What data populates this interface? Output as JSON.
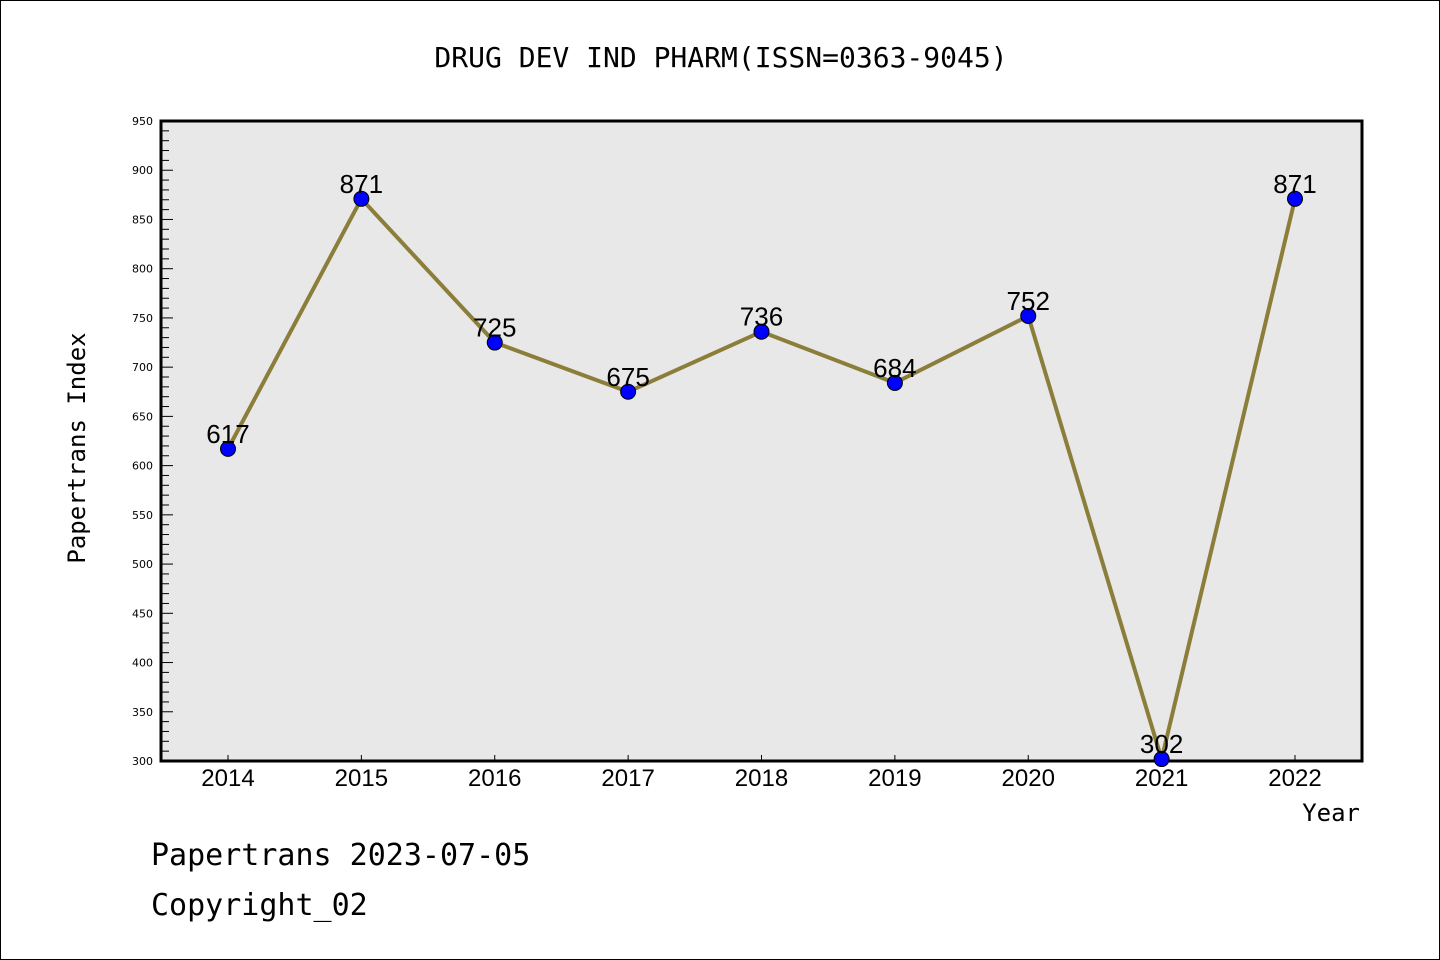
{
  "chart_data": {
    "type": "line",
    "title": "DRUG DEV IND PHARM(ISSN=0363-9045)",
    "xlabel": "Year",
    "ylabel": "Papertrans Index",
    "categories": [
      "2014",
      "2015",
      "2016",
      "2017",
      "2018",
      "2019",
      "2020",
      "2021",
      "2022"
    ],
    "values": [
      617,
      871,
      725,
      675,
      736,
      684,
      752,
      302,
      871
    ],
    "ylim": [
      300,
      950
    ],
    "yticks": [
      300,
      350,
      400,
      450,
      500,
      550,
      600,
      650,
      700,
      750,
      800,
      850,
      900,
      950
    ],
    "grid": false,
    "colors": {
      "line": "#8b7d3a",
      "marker": "#0000ff",
      "plot_bg": "#e8e8e8"
    }
  },
  "footer": {
    "line1": "Papertrans 2023-07-05",
    "line2": "Copyright_02"
  }
}
